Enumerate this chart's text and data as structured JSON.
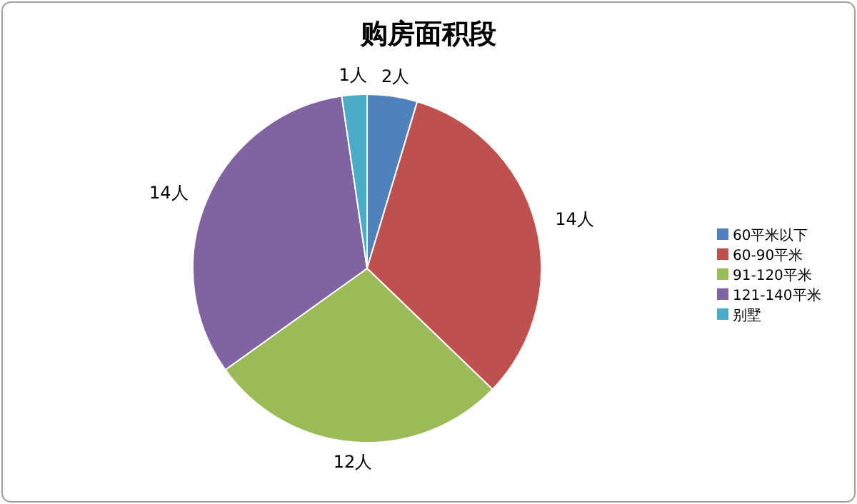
{
  "chart_data": {
    "type": "pie",
    "title": "购房面积段",
    "categories": [
      "60平米以下",
      "60-90平米",
      "91-120平米",
      "121-140平米",
      "别墅"
    ],
    "values": [
      2,
      14,
      12,
      14,
      1
    ],
    "value_labels": [
      "2人",
      "14人",
      "12人",
      "14人",
      "1人"
    ],
    "colors": [
      "#4f81bd",
      "#c0504d",
      "#9bbb59",
      "#8064a2",
      "#4bacc6"
    ],
    "legend": "right"
  }
}
